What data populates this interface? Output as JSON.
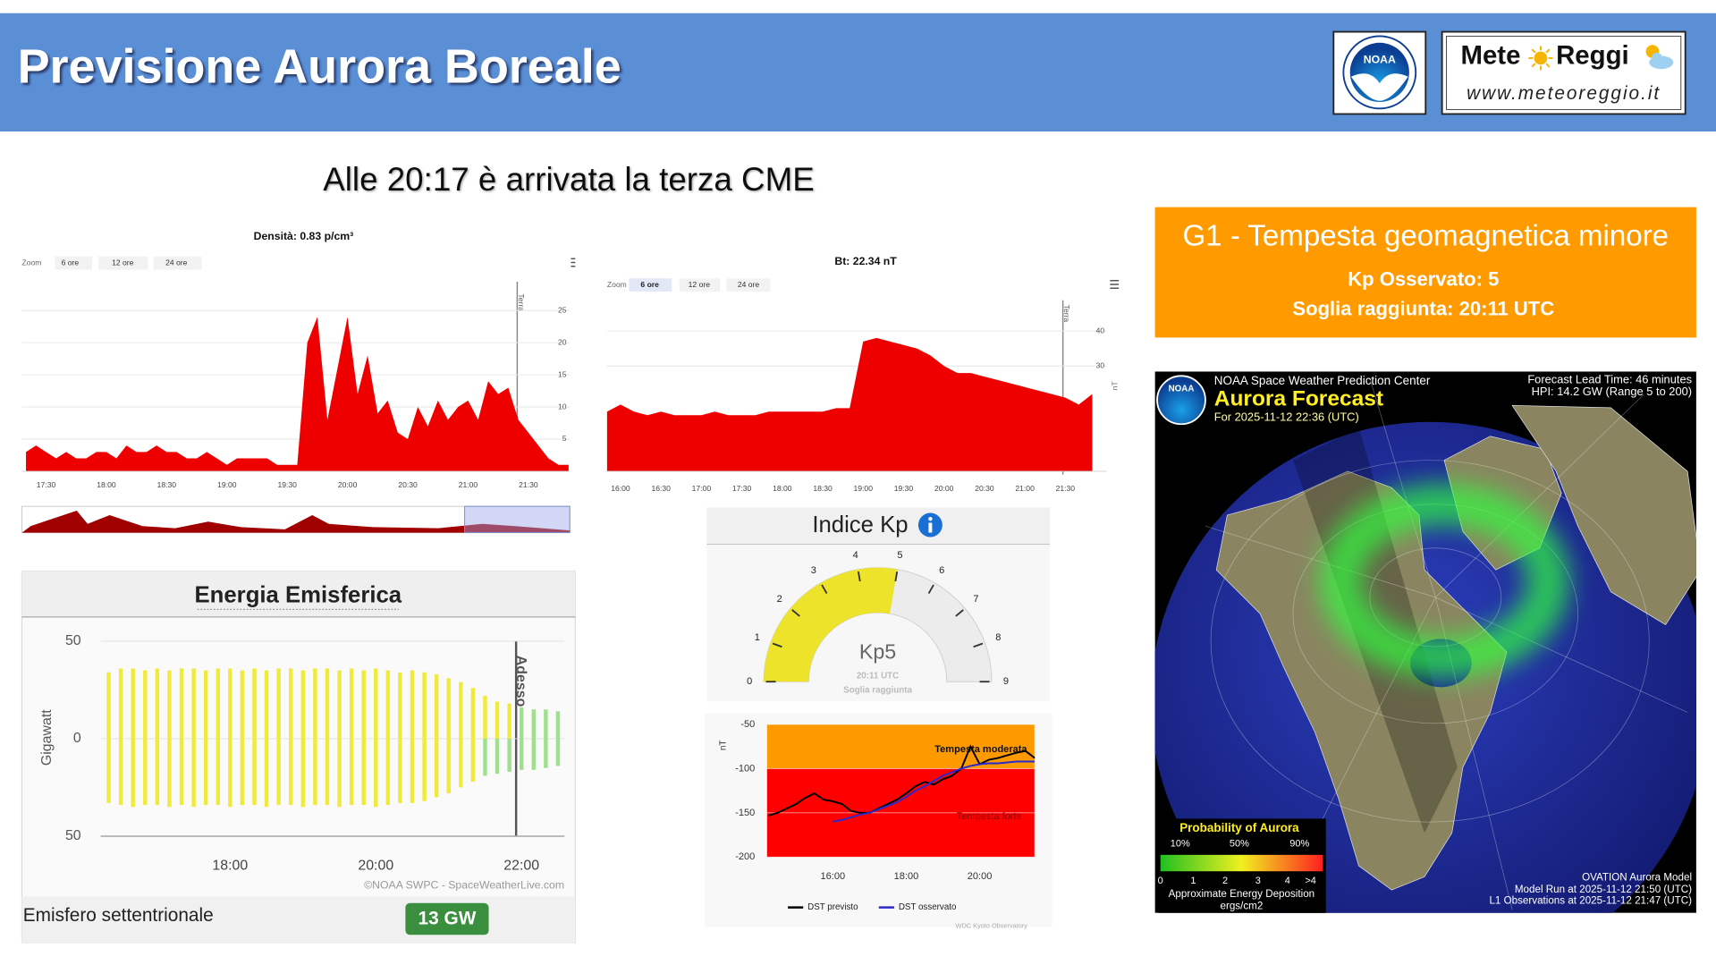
{
  "header": {
    "title": "Previsione Aurora Boreale",
    "noaa_logo": "NOAA",
    "brand_left": "Mete",
    "brand_right": "Reggi",
    "brand_url": "www.meteoreggio.it"
  },
  "headline": "Alle 20:17 è arrivata la terza CME",
  "density_chart": {
    "type": "area",
    "title": "Densità: 0.83 p/cm³",
    "zoom_label": "Zoom",
    "zoom_buttons": [
      "6 ore",
      "12 ore",
      "24 ore"
    ],
    "annotation": "Terra",
    "color": "#ee0000",
    "categories": [
      null,
      null,
      "17:30",
      null,
      null,
      null,
      null,
      null,
      "18:00",
      null,
      null,
      null,
      null,
      null,
      "18:30",
      null,
      null,
      null,
      null,
      null,
      "19:00",
      null,
      null,
      null,
      null,
      null,
      "19:30",
      null,
      null,
      null,
      null,
      null,
      "20:00",
      null,
      null,
      null,
      null,
      null,
      "20:30",
      null,
      null,
      null,
      null,
      null,
      "21:00",
      null,
      null,
      null,
      null,
      null,
      "21:30",
      null,
      null,
      null,
      null
    ],
    "values": [
      3,
      4,
      3,
      2,
      3,
      2,
      2,
      3,
      3,
      2,
      4,
      3,
      3,
      4,
      3,
      3,
      2,
      2,
      3,
      2,
      1,
      2,
      2,
      2,
      2,
      1,
      1,
      1,
      20,
      24,
      8,
      16,
      24,
      12,
      18,
      9,
      11,
      6,
      5,
      10,
      7,
      11,
      8,
      10,
      11,
      8,
      14,
      12,
      13,
      8,
      6,
      4,
      2,
      1,
      1
    ],
    "ylim": [
      0,
      30
    ],
    "yticks": [
      5,
      10,
      15,
      20,
      25
    ],
    "grid": true
  },
  "bt_chart": {
    "type": "area",
    "title": "Bt: 22.34 nT",
    "zoom_label": "Zoom",
    "zoom_buttons": [
      "6 ore",
      "12 ore",
      "24 ore"
    ],
    "annotation": "Terra",
    "y_label": "nT",
    "color": "#ee0000",
    "categories": [
      null,
      "16:00",
      null,
      null,
      "16:30",
      null,
      null,
      "17:00",
      null,
      null,
      "17:30",
      null,
      null,
      "18:00",
      null,
      null,
      "18:30",
      null,
      null,
      "19:00",
      null,
      null,
      "19:30",
      null,
      null,
      "20:00",
      null,
      null,
      "20:30",
      null,
      null,
      "21:00",
      null,
      null,
      "21:30",
      null,
      null
    ],
    "values": [
      17,
      19,
      17,
      16,
      17,
      16,
      16,
      16,
      17,
      16,
      16,
      16,
      17,
      17,
      17,
      17,
      17,
      18,
      18,
      37,
      38,
      37,
      36,
      35,
      33,
      30,
      28,
      28,
      27,
      26,
      25,
      24,
      23,
      22,
      21,
      19,
      22
    ],
    "ylim": [
      0,
      50
    ],
    "yticks": [
      30,
      40
    ],
    "grid": true
  },
  "energy_chart": {
    "type": "bar",
    "title": "Energia Emisferica",
    "y_label": "Gigawatt",
    "annotation": "Adesso",
    "source": "©NOAA SWPC - SpaceWeatherLive.com",
    "categories": [
      null,
      null,
      null,
      null,
      null,
      null,
      null,
      null,
      null,
      null,
      "18:00",
      null,
      null,
      null,
      null,
      null,
      null,
      null,
      null,
      null,
      null,
      null,
      "20:00",
      null,
      null,
      null,
      null,
      null,
      null,
      null,
      null,
      null,
      null,
      null,
      "22:00",
      null,
      null,
      null
    ],
    "series": [
      {
        "color": "#f0ea3a",
        "values": [
          34,
          36,
          36,
          35,
          36,
          35,
          36,
          36,
          35,
          36,
          36,
          35,
          36,
          35,
          36,
          36,
          35,
          36,
          36,
          35,
          36,
          35,
          36,
          35,
          34,
          35,
          34,
          33,
          31,
          29,
          26,
          22,
          19,
          18,
          null,
          null,
          null,
          null
        ]
      },
      {
        "color": "#f0ea3a",
        "values": [
          -33,
          -34,
          -35,
          -34,
          -34,
          -35,
          -34,
          -35,
          -34,
          -34,
          -35,
          -34,
          -34,
          -35,
          -34,
          -34,
          -35,
          -34,
          -34,
          -35,
          -34,
          -34,
          -35,
          -34,
          -33,
          -33,
          -32,
          -30,
          -28,
          -25,
          -22,
          null,
          null,
          null,
          null,
          null,
          null,
          null
        ]
      },
      {
        "color": "#9fe08f",
        "values": [
          null,
          null,
          null,
          null,
          null,
          null,
          null,
          null,
          null,
          null,
          null,
          null,
          null,
          null,
          null,
          null,
          null,
          null,
          null,
          null,
          null,
          null,
          null,
          null,
          null,
          null,
          null,
          null,
          null,
          null,
          null,
          null,
          null,
          null,
          16,
          15,
          15,
          14
        ]
      },
      {
        "color": "#9fe08f",
        "values": [
          null,
          null,
          null,
          null,
          null,
          null,
          null,
          null,
          null,
          null,
          null,
          null,
          null,
          null,
          null,
          null,
          null,
          null,
          null,
          null,
          null,
          null,
          null,
          null,
          null,
          null,
          null,
          null,
          null,
          null,
          null,
          -19,
          -18,
          -17,
          -16,
          -16,
          -15,
          -14
        ]
      }
    ],
    "ylim": [
      -50,
      50
    ],
    "yticks": [
      {
        "value": -50,
        "label": "50"
      },
      0,
      50
    ],
    "grid": true,
    "footer_label": "Emisfero settentrionale",
    "footer_value": "13 GW"
  },
  "kp_gauge": {
    "type": "gauge",
    "title": "Indice Kp",
    "value": 5,
    "value_label": "Kp5",
    "time": "20:11 UTC",
    "caption": "Soglia raggiunta",
    "range": [
      0,
      9
    ],
    "ticks": [
      0,
      1,
      2,
      3,
      4,
      5,
      6,
      7,
      8,
      9
    ],
    "color": "#ece32a"
  },
  "dst_chart": {
    "type": "line",
    "y_label": "nT",
    "source": "WDC Kyoto Observatory",
    "categories": [
      null,
      null,
      null,
      null,
      null,
      null,
      null,
      "16:00",
      null,
      null,
      null,
      null,
      null,
      null,
      null,
      "18:00",
      null,
      null,
      null,
      null,
      null,
      null,
      null,
      "20:00",
      null,
      null,
      null,
      null,
      null,
      null
    ],
    "series": [
      {
        "name": "DST previsto",
        "color": "#000000",
        "values": [
          -153,
          -150,
          -145,
          -140,
          -133,
          -128,
          -135,
          -137,
          -140,
          -148,
          -150,
          -150,
          -145,
          -140,
          -135,
          -128,
          -120,
          -115,
          -118,
          -112,
          -108,
          -100,
          -75,
          -95,
          -90,
          -88,
          -85,
          -82,
          -80,
          -88
        ]
      },
      {
        "name": "DST osservato",
        "color": "#2a2acc",
        "values": [
          null,
          null,
          null,
          null,
          null,
          null,
          null,
          -160,
          -158,
          -155,
          -152,
          -150,
          -146,
          -142,
          -138,
          -132,
          -125,
          -120,
          -114,
          -108,
          -104,
          -100,
          -97,
          -95,
          -94,
          -94,
          -93,
          -92,
          -92,
          -92
        ]
      }
    ],
    "bands": [
      {
        "from": -100,
        "to": -50,
        "label": "Tempesta moderata",
        "color": "#ff9900"
      },
      {
        "from": -200,
        "to": -100,
        "label": "Tempesta forte",
        "color": "#ff0000"
      }
    ],
    "ylim": [
      -200,
      -50
    ],
    "yticks": [
      -200,
      -150,
      -100,
      -50
    ],
    "grid": true
  },
  "storm_box": {
    "title": "G1 - Tempesta geomagnetica minore",
    "kp": "Kp Osservato: 5",
    "threshold": "Soglia raggiunta: 20:11 UTC"
  },
  "aurora_map": {
    "logo": "NOAA",
    "agency": "NOAA Space Weather Prediction Center",
    "title": "Aurora Forecast",
    "valid": "For 2025-11-12 22:36 (UTC)",
    "lead_time": "Forecast Lead Time:  46 minutes",
    "hpi": "HPI:  14.2 GW (Range 5 to 200)",
    "legend_title": "Probability of Aurora",
    "probability_labels": [
      "10%",
      "50%",
      "90%"
    ],
    "scale_labels": [
      "0",
      "1",
      "2",
      "3",
      "4",
      ">4"
    ],
    "scale_caption": "Approximate Energy Deposition",
    "scale_unit": "ergs/cm2",
    "model": "OVATION Aurora Model",
    "model_run": "Model Run at 2025-11-12 21:50 (UTC)",
    "observations": "L1 Observations at 2025-11-12 21:47 (UTC)"
  }
}
